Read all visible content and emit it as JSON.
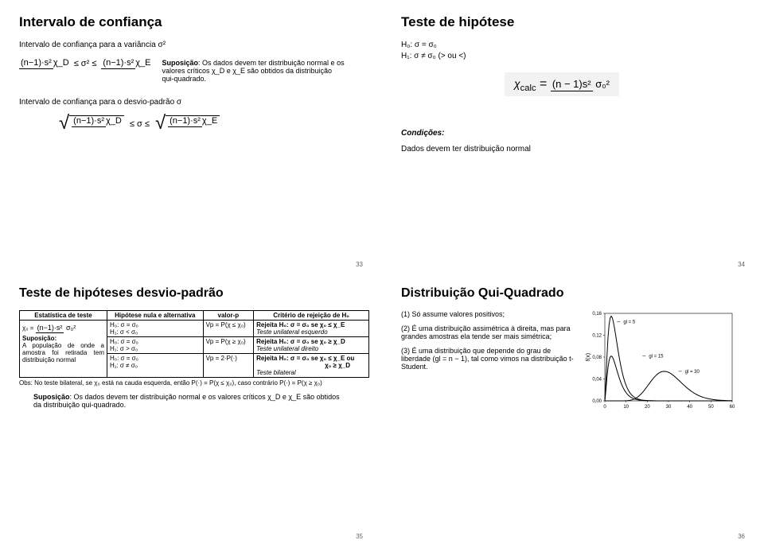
{
  "slide1": {
    "title": "Intervalo de confiança",
    "line1": "Intervalo de confiança para a variância σ²",
    "supos_label": "Suposição",
    "supos_text": ": Os dados devem ter distribuição normal e os valores críticos χ_D e χ_E são obtidos da distribuição qui-quadrado.",
    "line2": "Intervalo de confiança para o desvio-padrão σ",
    "frac_top": "(n−1)·s²",
    "chiD": "χ_D",
    "chiE": "χ_E",
    "leq_sigma2": "≤ σ² ≤",
    "leq_sigma": "≤ σ ≤",
    "page": "33"
  },
  "slide2": {
    "title": "Teste de hipótese",
    "h0": "H₀: σ = σ₀",
    "h1": "H₁: σ ≠ σ₀ (> ou <)",
    "chi_calc": "χ",
    "chi_calc_sub": "calc",
    "eq": " = ",
    "num": "(n − 1)s²",
    "den": "σ₀²",
    "cond_label": "Condições:",
    "cond_text": "Dados devem ter distribuição normal",
    "page": "34"
  },
  "slide3": {
    "title": "Teste de hipóteses desvio-padrão",
    "headers": [
      "Estatística de teste",
      "Hipótese nula e alternativa",
      "valor-p",
      "Critério de rejeição de H₀"
    ],
    "stat_formula_top": "(n−1)·s²",
    "stat_formula_bot": "σ₀²",
    "chi0": "χ₀ =",
    "supos_head": "Suposição:",
    "supos_body": "A população de onde a amostra foi retirada tem distribuição normal",
    "rows": [
      {
        "hyp1": "H₀: σ = σ₀",
        "hyp2": "H₁: σ < σ₀",
        "vp": "Vp = P(χ ≤ χ₀)",
        "crit1": "Rejeita H₀: σ = σ₀ se χ₀ ≤ χ_E",
        "crit2": "Teste unilateral esquerdo"
      },
      {
        "hyp1": "H₀: σ = σ₀",
        "hyp2": "H₁: σ > σ₀",
        "vp": "Vp = P(χ ≥ χ₀)",
        "crit1": "Rejeita H₀: σ = σ₀ se χ₀ ≥ χ_D",
        "crit2": "Teste unilateral direito"
      },
      {
        "hyp1": "H₀: σ = σ₀",
        "hyp2": "H₁: σ ≠ σ₀",
        "vp": "Vp = 2·P(·)",
        "crit1": "Rejeita H₀: σ = σ₀ se χ₀ ≤ χ_E ou",
        "crit2": "χ₀ ≥ χ_D",
        "crit3": "Teste bilateral"
      }
    ],
    "obs": "Obs: No teste bilateral, se χ₀ está na cauda esquerda, então P(·) = P(χ ≤ χ₀), caso contrário P(·) = P(χ ≥ χ₀)",
    "footer_bold": "Suposição",
    "footer_rest": ": Os dados devem ter distribuição normal e os valores críticos χ_D e χ_E são obtidos da distribuição qui-quadrado.",
    "page": "35"
  },
  "slide4": {
    "title": "Distribuição Qui-Quadrado",
    "p1": "(1) Só assume valores positivos;",
    "p2": "(2) É uma distribuição assimétrica à direita, mas para grandes amostras ela tende ser mais simétrica;",
    "p3": "(3) É uma distribuição que depende do grau de liberdade (gl = n − 1), tal como vimos na distribuição t-Student.",
    "page": "36",
    "chart": {
      "yticks": [
        "0,16",
        "0,12",
        "0,08",
        "0,04",
        "0,00"
      ],
      "xticks": [
        "0",
        "10",
        "20",
        "30",
        "40",
        "50",
        "60"
      ],
      "ylab": "f(x)",
      "series": [
        {
          "label": "gl = 5",
          "color": "#000000",
          "peak_x": 3,
          "peak_y": 0.155
        },
        {
          "label": "gl = 15",
          "color": "#000000",
          "peak_x": 13,
          "peak_y": 0.082
        },
        {
          "label": "gl = 30",
          "color": "#000000",
          "peak_x": 28,
          "peak_y": 0.054
        }
      ],
      "line_color": "#000000",
      "grid_color": "#000000",
      "bg": "#ffffff",
      "xlim": [
        0,
        60
      ],
      "ylim": [
        0,
        0.16
      ]
    }
  }
}
